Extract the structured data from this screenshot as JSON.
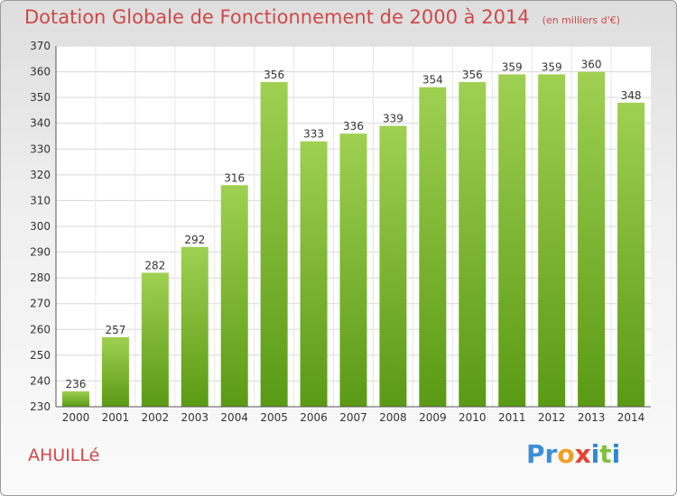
{
  "title": "Dotation Globale de Fonctionnement de 2000 à 2014",
  "unit_note": "(en milliers d'€)",
  "commune": "AHUILLé",
  "logo": "Proxiti",
  "colors": {
    "bar_top": "#9fd052",
    "bar_bottom": "#5a9a14",
    "title": "#d04848"
  },
  "chart_data": {
    "type": "bar",
    "title": "Dotation Globale de Fonctionnement de 2000 à 2014",
    "xlabel": "",
    "ylabel": "",
    "categories": [
      "2000",
      "2001",
      "2002",
      "2003",
      "2004",
      "2005",
      "2006",
      "2007",
      "2008",
      "2009",
      "2010",
      "2011",
      "2012",
      "2013",
      "2014"
    ],
    "values": [
      236,
      257,
      282,
      292,
      316,
      356,
      333,
      336,
      339,
      354,
      356,
      359,
      359,
      360,
      348
    ],
    "ylim": [
      230,
      370
    ],
    "yticks": [
      230,
      240,
      250,
      260,
      270,
      280,
      290,
      300,
      310,
      320,
      330,
      340,
      350,
      360,
      370
    ],
    "grid": true,
    "legend": "none"
  }
}
